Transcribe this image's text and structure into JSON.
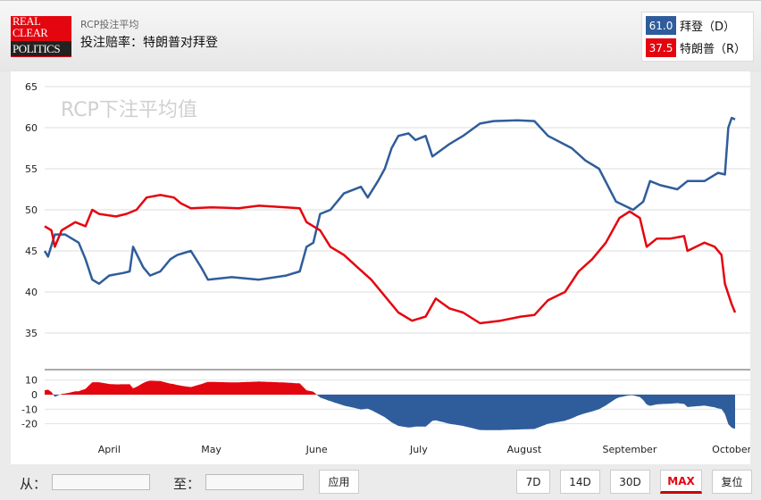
{
  "header": {
    "logo_text": [
      "REAL",
      "CLEAR",
      "POLITICS"
    ],
    "subtitle": "RCP投注平均",
    "title": "投注赔率：特朗普对拜登"
  },
  "legend": [
    {
      "value": "61.0",
      "name": "拜登（D）",
      "color": "#2f5d9b"
    },
    {
      "value": "37.5",
      "name": "特朗普（R）",
      "color": "#e4060f"
    }
  ],
  "controls": {
    "from_label": "从：",
    "from_value": "",
    "to_label": "至：",
    "to_value": "",
    "apply": "应用",
    "ranges": [
      "7D",
      "14D",
      "30D",
      "MAX"
    ],
    "active_range": "MAX",
    "reset": "复位"
  },
  "chart_data": {
    "type": "line",
    "watermark": "RCP下注平均值",
    "xlim": [
      "2020-03-13",
      "2020-10-02"
    ],
    "x_ticks": [
      {
        "label": "April",
        "date": "2020-04-01"
      },
      {
        "label": "May",
        "date": "2020-05-01"
      },
      {
        "label": "June",
        "date": "2020-06-01"
      },
      {
        "label": "July",
        "date": "2020-07-01"
      },
      {
        "label": "August",
        "date": "2020-08-01"
      },
      {
        "label": "September",
        "date": "2020-09-01"
      },
      {
        "label": "October",
        "date": "2020-10-01"
      }
    ],
    "ylim": [
      35,
      65
    ],
    "y_ticks": [
      "35",
      "40",
      "45",
      "50",
      "55",
      "60",
      "65"
    ],
    "spread_ylim": [
      -22,
      12
    ],
    "spread_ticks": [
      "10",
      "0",
      "-10",
      "-20"
    ],
    "grid": true,
    "series": [
      {
        "name": "拜登（D）",
        "color": "#2f5d9b",
        "points": [
          [
            "2020-03-13",
            45
          ],
          [
            "2020-03-14",
            44.3
          ],
          [
            "2020-03-16",
            47
          ],
          [
            "2020-03-19",
            47
          ],
          [
            "2020-03-23",
            46
          ],
          [
            "2020-03-25",
            44
          ],
          [
            "2020-03-27",
            41.5
          ],
          [
            "2020-03-29",
            41
          ],
          [
            "2020-04-01",
            42
          ],
          [
            "2020-04-05",
            42.3
          ],
          [
            "2020-04-07",
            42.5
          ],
          [
            "2020-04-08",
            45.5
          ],
          [
            "2020-04-11",
            43
          ],
          [
            "2020-04-13",
            42
          ],
          [
            "2020-04-16",
            42.5
          ],
          [
            "2020-04-19",
            44
          ],
          [
            "2020-04-21",
            44.5
          ],
          [
            "2020-04-25",
            45
          ],
          [
            "2020-04-28",
            43
          ],
          [
            "2020-04-30",
            41.5
          ],
          [
            "2020-05-07",
            41.8
          ],
          [
            "2020-05-15",
            41.5
          ],
          [
            "2020-05-23",
            42
          ],
          [
            "2020-05-27",
            42.5
          ],
          [
            "2020-05-29",
            45.5
          ],
          [
            "2020-05-31",
            46
          ],
          [
            "2020-06-02",
            49.5
          ],
          [
            "2020-06-05",
            50
          ],
          [
            "2020-06-09",
            52
          ],
          [
            "2020-06-14",
            52.8
          ],
          [
            "2020-06-16",
            51.5
          ],
          [
            "2020-06-19",
            53.5
          ],
          [
            "2020-06-21",
            55
          ],
          [
            "2020-06-23",
            57.5
          ],
          [
            "2020-06-25",
            59
          ],
          [
            "2020-06-28",
            59.3
          ],
          [
            "2020-06-30",
            58.5
          ],
          [
            "2020-07-03",
            59
          ],
          [
            "2020-07-05",
            56.5
          ],
          [
            "2020-07-10",
            58
          ],
          [
            "2020-07-14",
            59
          ],
          [
            "2020-07-19",
            60.5
          ],
          [
            "2020-07-23",
            60.8
          ],
          [
            "2020-07-30",
            60.9
          ],
          [
            "2020-08-04",
            60.8
          ],
          [
            "2020-08-08",
            59
          ],
          [
            "2020-08-15",
            57.5
          ],
          [
            "2020-08-19",
            56
          ],
          [
            "2020-08-23",
            55
          ],
          [
            "2020-08-28",
            51
          ],
          [
            "2020-09-02",
            50
          ],
          [
            "2020-09-05",
            51
          ],
          [
            "2020-09-07",
            53.5
          ],
          [
            "2020-09-10",
            53
          ],
          [
            "2020-09-15",
            52.5
          ],
          [
            "2020-09-18",
            53.5
          ],
          [
            "2020-09-23",
            53.5
          ],
          [
            "2020-09-27",
            54.5
          ],
          [
            "2020-09-29",
            54.3
          ],
          [
            "2020-09-30",
            60
          ],
          [
            "2020-10-01",
            61.2
          ],
          [
            "2020-10-02",
            61
          ]
        ]
      },
      {
        "name": "特朗普（R）",
        "color": "#e4060f",
        "points": [
          [
            "2020-03-13",
            48
          ],
          [
            "2020-03-15",
            47.5
          ],
          [
            "2020-03-16",
            45.5
          ],
          [
            "2020-03-18",
            47.5
          ],
          [
            "2020-03-22",
            48.5
          ],
          [
            "2020-03-25",
            48
          ],
          [
            "2020-03-27",
            50
          ],
          [
            "2020-03-29",
            49.5
          ],
          [
            "2020-04-03",
            49.2
          ],
          [
            "2020-04-06",
            49.5
          ],
          [
            "2020-04-09",
            50
          ],
          [
            "2020-04-12",
            51.5
          ],
          [
            "2020-04-16",
            51.8
          ],
          [
            "2020-04-20",
            51.5
          ],
          [
            "2020-04-22",
            50.8
          ],
          [
            "2020-04-25",
            50.2
          ],
          [
            "2020-05-01",
            50.3
          ],
          [
            "2020-05-09",
            50.2
          ],
          [
            "2020-05-15",
            50.5
          ],
          [
            "2020-05-23",
            50.3
          ],
          [
            "2020-05-27",
            50.2
          ],
          [
            "2020-05-29",
            48.5
          ],
          [
            "2020-06-02",
            47.5
          ],
          [
            "2020-06-05",
            45.5
          ],
          [
            "2020-06-09",
            44.5
          ],
          [
            "2020-06-13",
            43
          ],
          [
            "2020-06-17",
            41.5
          ],
          [
            "2020-06-21",
            39.5
          ],
          [
            "2020-06-25",
            37.5
          ],
          [
            "2020-06-29",
            36.5
          ],
          [
            "2020-07-03",
            37
          ],
          [
            "2020-07-06",
            39.2
          ],
          [
            "2020-07-10",
            38
          ],
          [
            "2020-07-14",
            37.5
          ],
          [
            "2020-07-19",
            36.2
          ],
          [
            "2020-07-25",
            36.5
          ],
          [
            "2020-07-31",
            37
          ],
          [
            "2020-08-04",
            37.2
          ],
          [
            "2020-08-08",
            39
          ],
          [
            "2020-08-13",
            40
          ],
          [
            "2020-08-17",
            42.5
          ],
          [
            "2020-08-21",
            44
          ],
          [
            "2020-08-25",
            46
          ],
          [
            "2020-08-29",
            49
          ],
          [
            "2020-09-01",
            49.8
          ],
          [
            "2020-09-04",
            49
          ],
          [
            "2020-09-06",
            45.5
          ],
          [
            "2020-09-09",
            46.5
          ],
          [
            "2020-09-13",
            46.5
          ],
          [
            "2020-09-17",
            46.8
          ],
          [
            "2020-09-18",
            45
          ],
          [
            "2020-09-23",
            46
          ],
          [
            "2020-09-26",
            45.5
          ],
          [
            "2020-09-28",
            44.5
          ],
          [
            "2020-09-29",
            41
          ],
          [
            "2020-10-01",
            38.5
          ],
          [
            "2020-10-02",
            37.5
          ]
        ]
      }
    ]
  }
}
